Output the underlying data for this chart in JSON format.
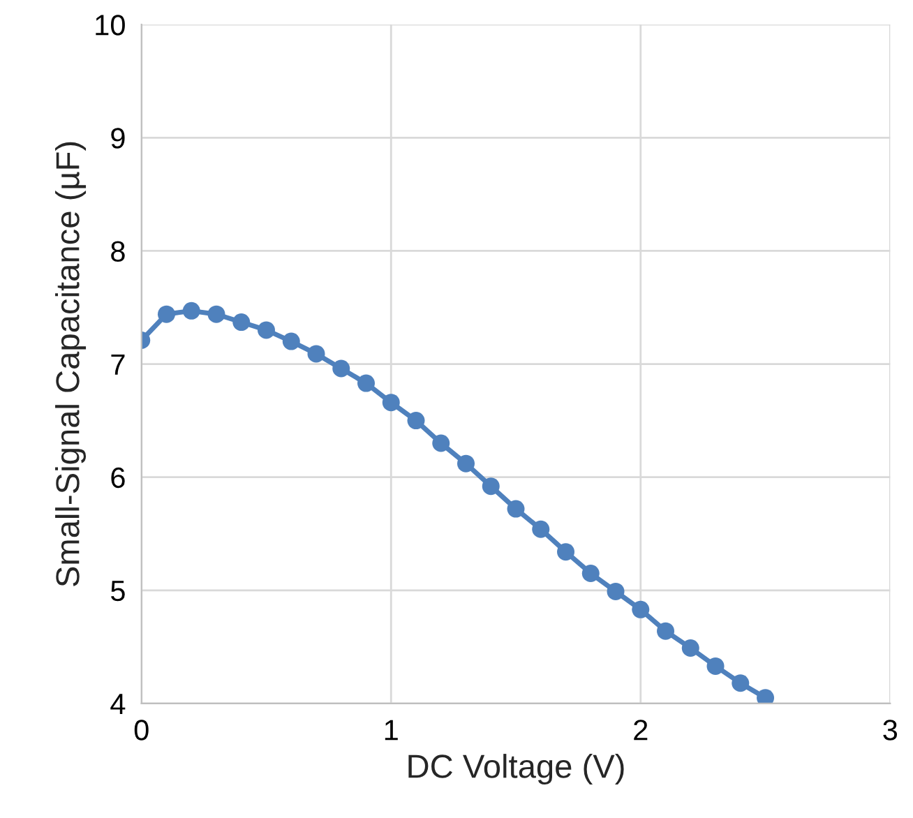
{
  "chart_data": {
    "type": "line",
    "xlabel": "DC Voltage (V)",
    "ylabel": "Small-Signal Capacitance (µF)",
    "x": [
      0,
      0.1,
      0.2,
      0.3,
      0.4,
      0.5,
      0.6,
      0.7,
      0.8,
      0.9,
      1.0,
      1.1,
      1.2,
      1.3,
      1.4,
      1.5,
      1.6,
      1.7,
      1.8,
      1.9,
      2.0,
      2.1,
      2.2,
      2.3,
      2.4,
      2.5
    ],
    "series": [
      {
        "color": "#4f81bd",
        "values": [
          7.21,
          7.44,
          7.47,
          7.44,
          7.37,
          7.3,
          7.2,
          7.09,
          6.96,
          6.83,
          6.66,
          6.5,
          6.3,
          6.12,
          5.92,
          5.72,
          5.54,
          5.34,
          5.15,
          4.99,
          4.83,
          4.64,
          4.49,
          4.33,
          4.18,
          4.05
        ]
      }
    ],
    "xlim": [
      0,
      3
    ],
    "xticks": [
      0,
      1,
      2,
      3
    ],
    "ylim": [
      4,
      10
    ],
    "yticks": [
      4,
      5,
      6,
      7,
      8,
      9,
      10
    ],
    "grid": true,
    "marker": "circle",
    "line_style": "solid"
  }
}
